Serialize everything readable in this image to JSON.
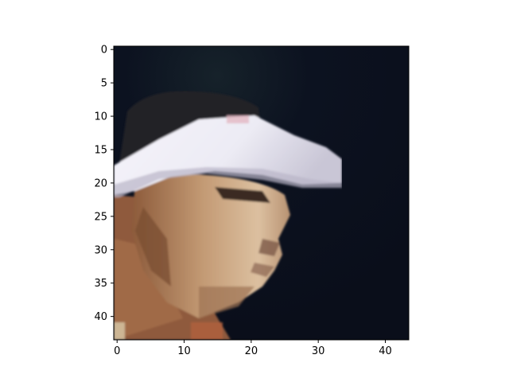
{
  "figure": {
    "x_ticks": [
      "0",
      "10",
      "20",
      "30",
      "40"
    ],
    "y_ticks": [
      "0",
      "5",
      "10",
      "15",
      "20",
      "25",
      "30",
      "35",
      "40"
    ],
    "image_description_icon": "pixelated-face-image"
  },
  "chart_data": {
    "type": "heatmap",
    "title": "",
    "xlabel": "",
    "ylabel": "",
    "xlim": [
      -0.5,
      43.5
    ],
    "ylim": [
      43.5,
      -0.5
    ],
    "x_ticks": [
      0,
      10,
      20,
      30,
      40
    ],
    "y_ticks": [
      0,
      5,
      10,
      15,
      20,
      25,
      30,
      35,
      40
    ],
    "grid": false,
    "image_rows": 44,
    "image_cols": 44
  },
  "colors": {
    "background": "#0b0f1c",
    "visor": "#e9e8f3",
    "skin_light": "#d9b48f",
    "skin_mid": "#b98a62",
    "skin_dark": "#7a4e32",
    "hair": "#1b1a1e",
    "shirt": "#8f5a3c"
  }
}
